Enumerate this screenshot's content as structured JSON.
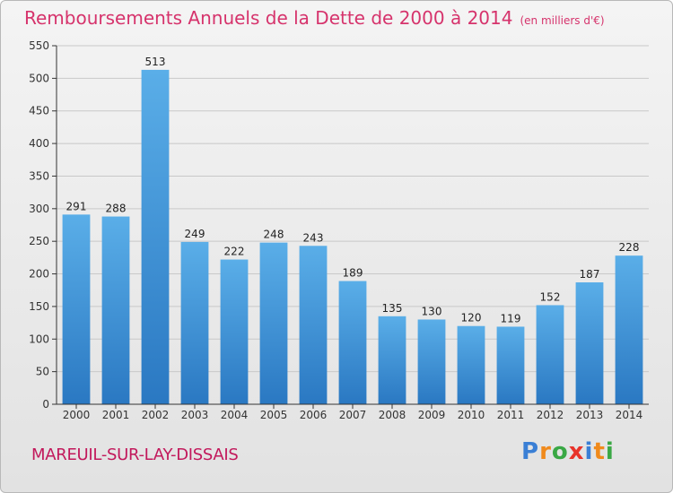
{
  "title": "Remboursements Annuels de la Dette de 2000 à 2014",
  "unit": "(en milliers d'€)",
  "commune": "MAREUIL-SUR-LAY-DISSAIS",
  "logo": {
    "text": "Proxiti",
    "letters": [
      {
        "ch": "P",
        "color": "#3a7fd5"
      },
      {
        "ch": "r",
        "color": "#f08a1c"
      },
      {
        "ch": "o",
        "color": "#3aa845"
      },
      {
        "ch": "x",
        "color": "#e8332a"
      },
      {
        "ch": "i",
        "color": "#3a7fd5"
      },
      {
        "ch": "t",
        "color": "#f08a1c"
      },
      {
        "ch": "i",
        "color": "#3aa845"
      }
    ]
  },
  "colors": {
    "bar_top": "#5aaee8",
    "bar_bottom": "#2a78c2",
    "title": "#d6336c",
    "axis": "#333333"
  },
  "chart_data": {
    "type": "bar",
    "categories": [
      "2000",
      "2001",
      "2002",
      "2003",
      "2004",
      "2005",
      "2006",
      "2007",
      "2008",
      "2009",
      "2010",
      "2011",
      "2012",
      "2013",
      "2014"
    ],
    "values": [
      291,
      288,
      513,
      249,
      222,
      248,
      243,
      189,
      135,
      130,
      120,
      119,
      152,
      187,
      228
    ],
    "ylim": [
      0,
      550
    ],
    "yticks": [
      0,
      50,
      100,
      150,
      200,
      250,
      300,
      350,
      400,
      450,
      500,
      550
    ],
    "grid": true,
    "legend": "none"
  }
}
